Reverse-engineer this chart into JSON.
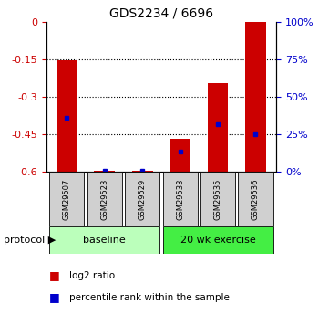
{
  "title": "GDS2234 / 6696",
  "samples": [
    "GSM29507",
    "GSM29523",
    "GSM29529",
    "GSM29533",
    "GSM29535",
    "GSM29536"
  ],
  "log2_ratio_top": [
    -0.153,
    -0.598,
    -0.598,
    -0.468,
    -0.243,
    0.0
  ],
  "log2_ratio_bottom": [
    -0.6,
    -0.6,
    -0.6,
    -0.6,
    -0.6,
    -0.6
  ],
  "percentile_rank": [
    -0.385,
    -0.598,
    -0.598,
    -0.518,
    -0.408,
    -0.448
  ],
  "ylim": [
    -0.6,
    0.0
  ],
  "yticks_left": [
    0.0,
    -0.15,
    -0.3,
    -0.45,
    -0.6
  ],
  "ytick_labels_left": [
    "0",
    "-0.15",
    "-0.3",
    "-0.45",
    "-0.6"
  ],
  "yticks_right_pct": [
    100,
    75,
    50,
    25,
    0
  ],
  "bar_color": "#cc0000",
  "marker_color": "#0000cc",
  "protocol_groups": [
    {
      "label": "baseline",
      "indices": [
        0,
        1,
        2
      ],
      "color": "#bbffbb"
    },
    {
      "label": "20 wk exercise",
      "indices": [
        3,
        4,
        5
      ],
      "color": "#44ee44"
    }
  ],
  "legend_items": [
    {
      "label": "log2 ratio",
      "color": "#cc0000"
    },
    {
      "label": "percentile rank within the sample",
      "color": "#0000cc"
    }
  ],
  "label_color_left": "#cc0000",
  "label_color_right": "#0000cc",
  "title_fontsize": 10,
  "tick_fontsize": 8,
  "sample_fontsize": 6,
  "proto_fontsize": 8,
  "legend_fontsize": 7.5
}
